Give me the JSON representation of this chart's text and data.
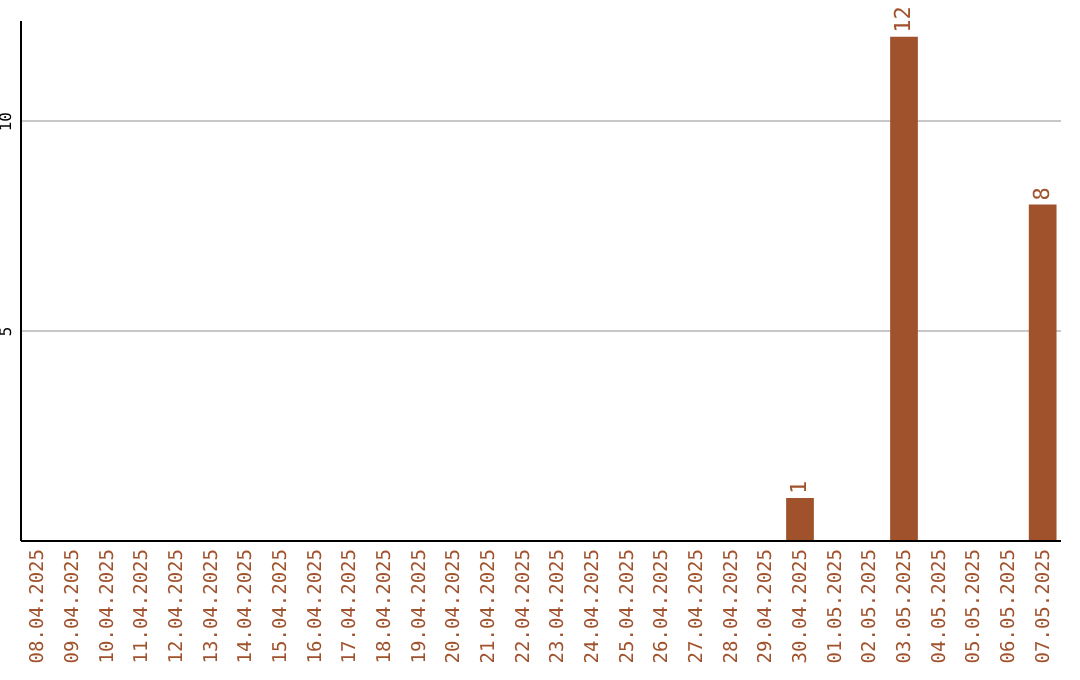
{
  "chart_data": {
    "type": "bar",
    "categories": [
      "08.04.2025",
      "09.04.2025",
      "10.04.2025",
      "11.04.2025",
      "12.04.2025",
      "13.04.2025",
      "14.04.2025",
      "15.04.2025",
      "16.04.2025",
      "17.04.2025",
      "18.04.2025",
      "19.04.2025",
      "20.04.2025",
      "21.04.2025",
      "22.04.2025",
      "23.04.2025",
      "24.04.2025",
      "25.04.2025",
      "26.04.2025",
      "27.04.2025",
      "28.04.2025",
      "29.04.2025",
      "30.04.2025",
      "01.05.2025",
      "02.05.2025",
      "03.05.2025",
      "04.05.2025",
      "05.05.2025",
      "06.05.2025",
      "07.05.2025"
    ],
    "values": [
      0,
      0,
      0,
      0,
      0,
      0,
      0,
      0,
      0,
      0,
      0,
      0,
      0,
      0,
      0,
      0,
      0,
      0,
      0,
      0,
      0,
      0,
      1,
      0,
      0,
      12,
      0,
      0,
      0,
      8
    ],
    "value_labels": [
      null,
      null,
      null,
      null,
      null,
      null,
      null,
      null,
      null,
      null,
      null,
      null,
      null,
      null,
      null,
      null,
      null,
      null,
      null,
      null,
      null,
      null,
      "1",
      null,
      null,
      "12",
      null,
      null,
      null,
      "8"
    ],
    "color": "#a0522d",
    "ylim": [
      0,
      12.4
    ],
    "yticks": [
      5,
      10
    ],
    "grid": "y"
  }
}
